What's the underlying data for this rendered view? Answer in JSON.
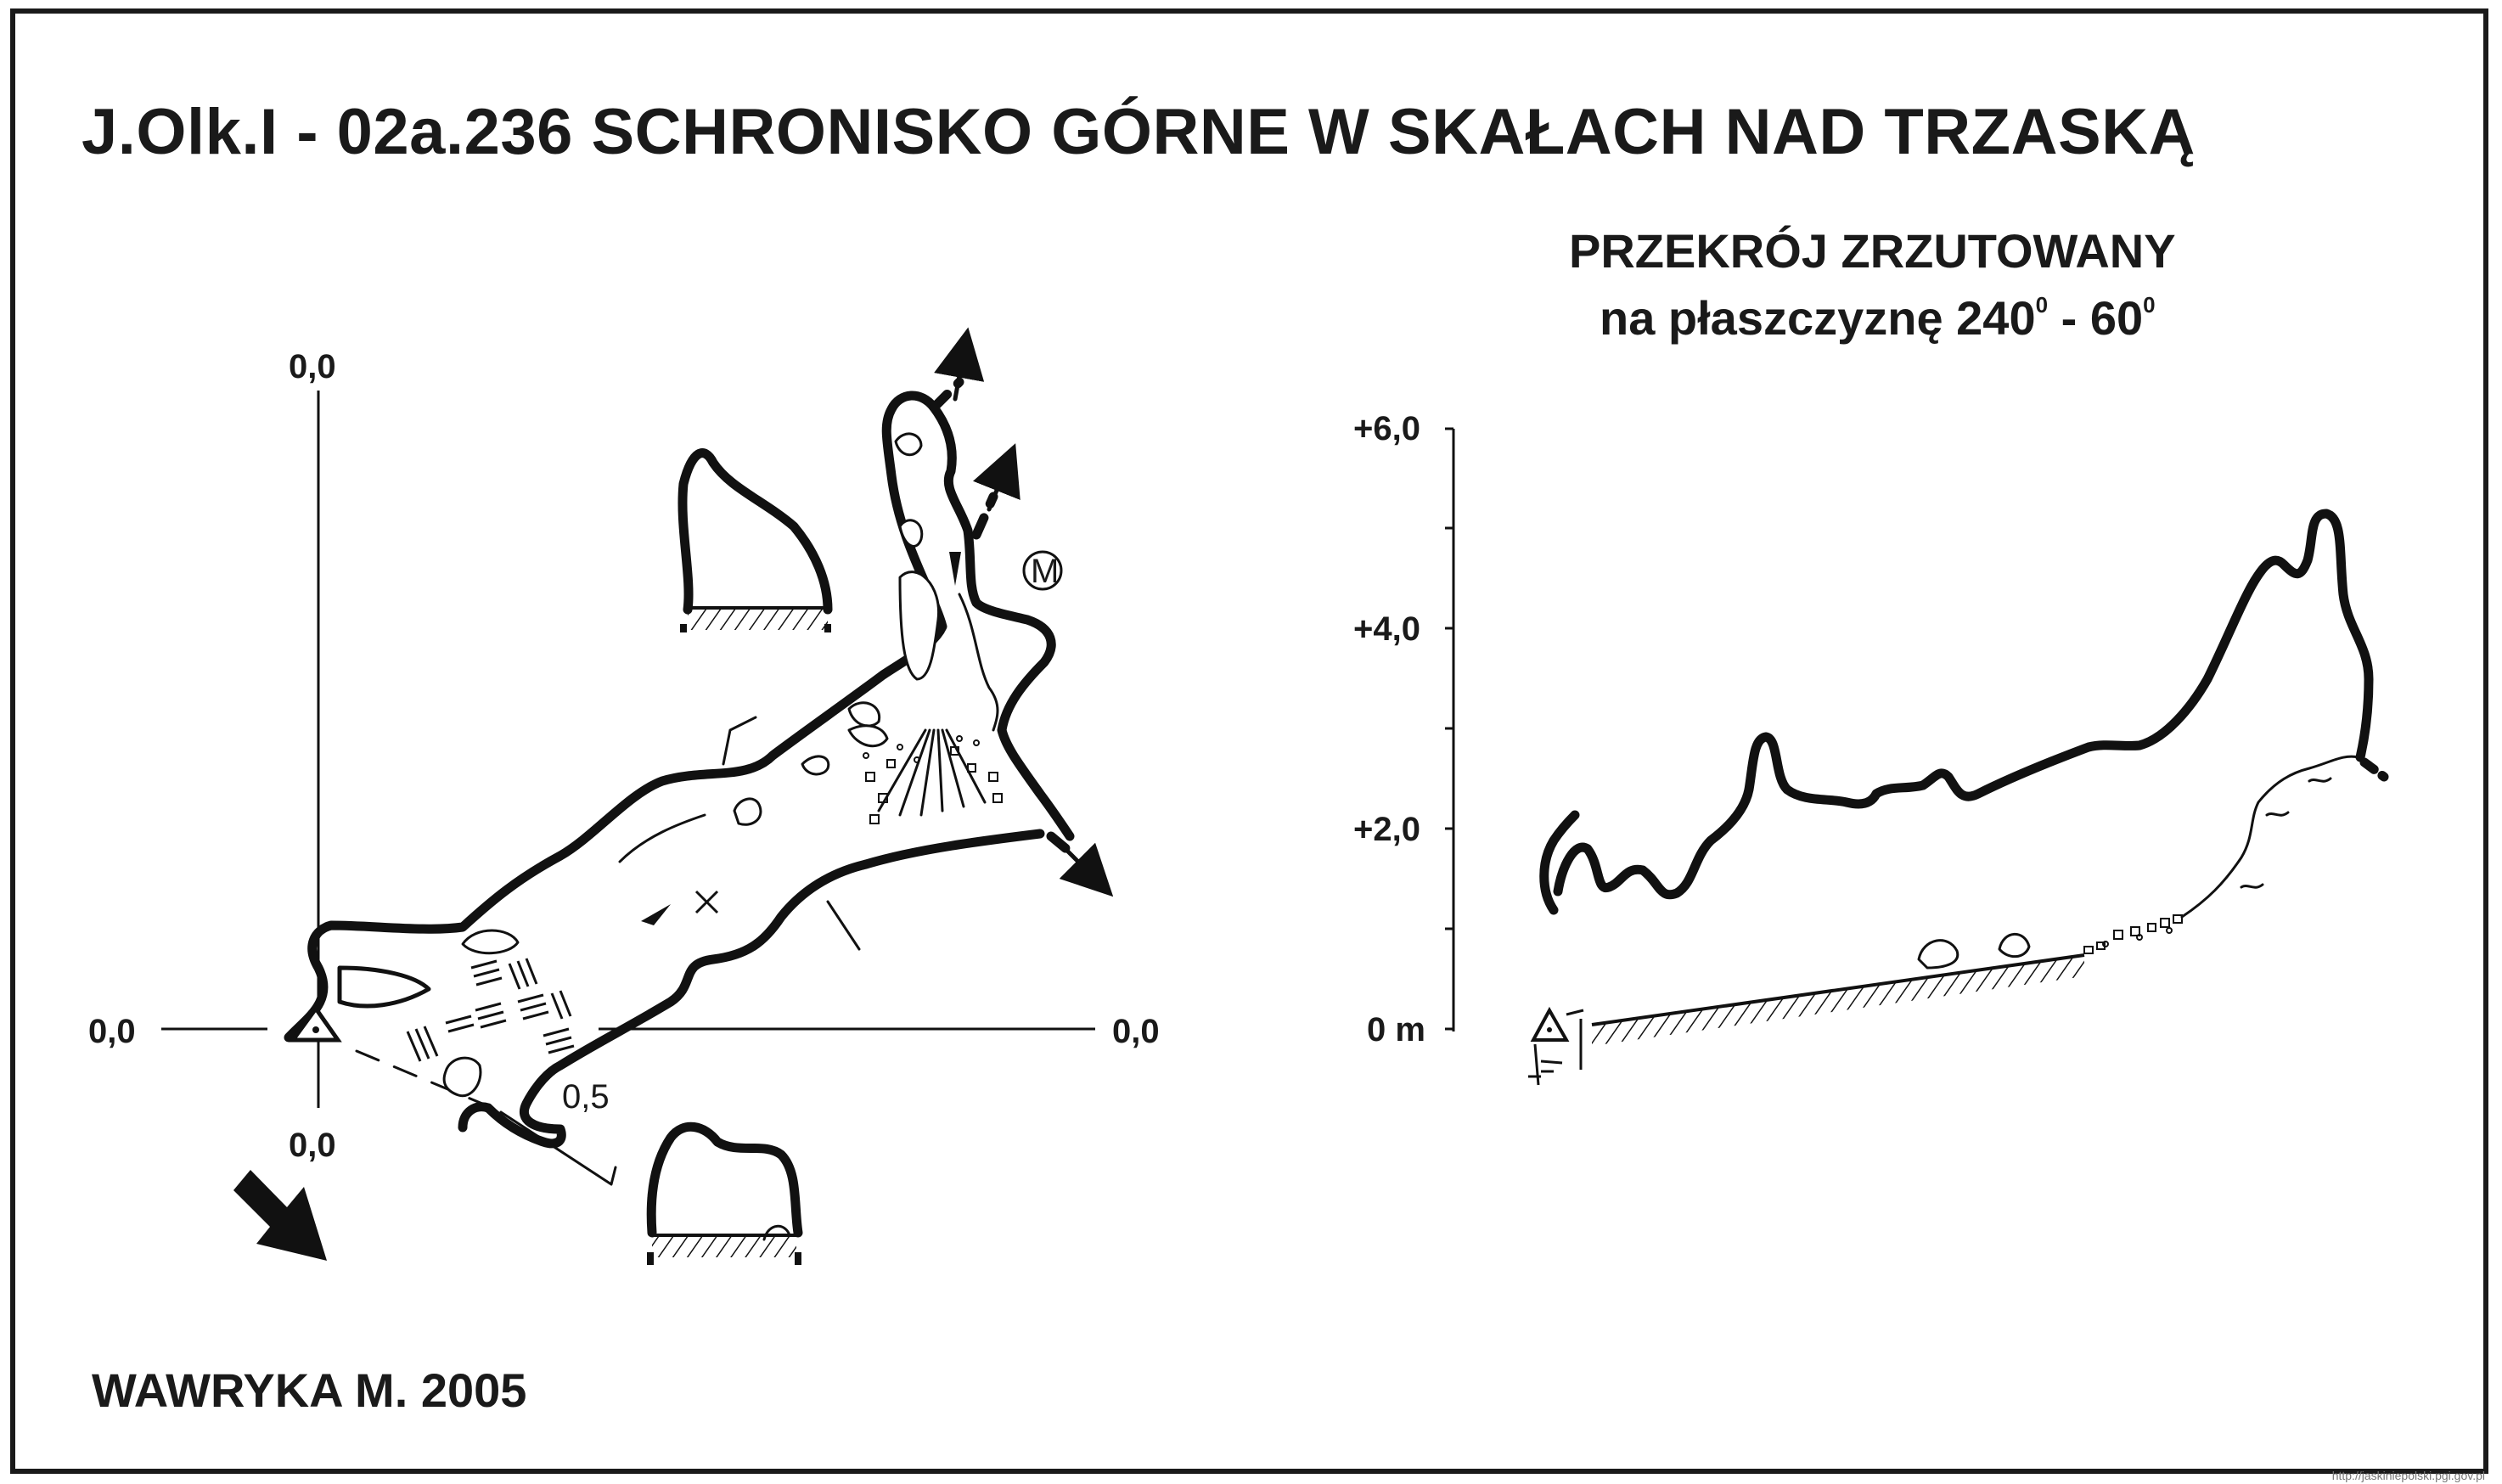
{
  "title": "J.Olk.I - 02a.236  SCHRONISKO GÓRNE W SKAŁACH NAD TRZASKĄ",
  "author": "WAWRYKA M. 2005",
  "plan": {
    "axis_labels": {
      "top": "0,0",
      "bottom": "0,0",
      "left": "0,0",
      "right": "0,0"
    },
    "depth_mark": "0,5",
    "magnetic_symbol": "M",
    "markers": [
      "entrance-triangle",
      "cross-mark",
      "north-arrow"
    ]
  },
  "section": {
    "title_line1": "PRZEKRÓJ ZRZUTOWANY",
    "title_line2_prefix": "na płaszczyznę 240",
    "title_line2_sup1": "0",
    "title_line2_mid": " - 60",
    "title_line2_sup2": "0",
    "y_ticks": [
      "+6,0",
      "+4,0",
      "+2,0",
      "0 m"
    ]
  },
  "watermark": "http://jaskiniepolski.pgi.gov.pl",
  "colors": {
    "ink": "#111111",
    "background": "#ffffff"
  }
}
